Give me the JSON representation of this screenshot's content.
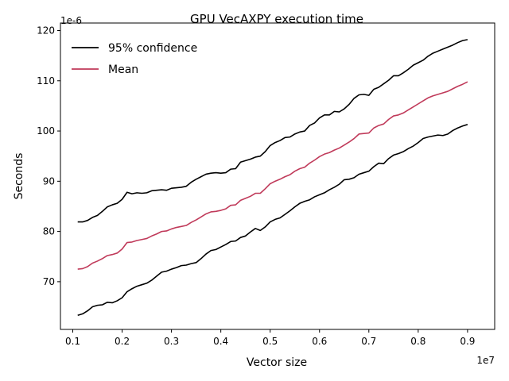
{
  "chart_data": {
    "type": "line",
    "title": "GPU VecAXPY execution time",
    "xlabel": "Vector size",
    "ylabel": "Seconds",
    "x_multiplier_label": "1e7",
    "y_multiplier_label": "1e-6",
    "xlim": [
      0.075,
      0.955
    ],
    "ylim": [
      60.5,
      121.5
    ],
    "x_ticks": [
      0.1,
      0.2,
      0.3,
      0.4,
      0.5,
      0.6,
      0.7,
      0.8,
      0.9
    ],
    "x_tick_labels": [
      "0.1",
      "0.2",
      "0.3",
      "0.4",
      "0.5",
      "0.6",
      "0.7",
      "0.8",
      "0.9"
    ],
    "y_ticks": [
      70,
      80,
      90,
      100,
      110,
      120
    ],
    "y_tick_labels": [
      "70",
      "80",
      "90",
      "100",
      "110",
      "120"
    ],
    "legend_position": "top-left",
    "x": [
      0.11,
      0.12,
      0.13,
      0.14,
      0.15,
      0.16,
      0.17,
      0.18,
      0.19,
      0.2,
      0.21,
      0.22,
      0.23,
      0.24,
      0.25,
      0.26,
      0.27,
      0.28,
      0.29,
      0.3,
      0.31,
      0.32,
      0.33,
      0.34,
      0.35,
      0.36,
      0.37,
      0.38,
      0.39,
      0.4,
      0.41,
      0.42,
      0.43,
      0.44,
      0.45,
      0.46,
      0.47,
      0.48,
      0.49,
      0.5,
      0.51,
      0.52,
      0.53,
      0.54,
      0.55,
      0.56,
      0.57,
      0.58,
      0.59,
      0.6,
      0.61,
      0.62,
      0.63,
      0.64,
      0.65,
      0.66,
      0.67,
      0.68,
      0.69,
      0.7,
      0.71,
      0.72,
      0.73,
      0.74,
      0.75,
      0.76,
      0.77,
      0.78,
      0.79,
      0.8,
      0.81,
      0.82,
      0.83,
      0.84,
      0.85,
      0.86,
      0.87,
      0.88,
      0.89,
      0.9
    ],
    "series": [
      {
        "name": "95% confidence",
        "color": "#000000",
        "values": [
          81.9,
          81.9,
          82.2,
          82.8,
          83.2,
          84.0,
          84.9,
          85.3,
          85.6,
          86.4,
          87.8,
          87.5,
          87.7,
          87.6,
          87.7,
          88.1,
          88.2,
          88.3,
          88.2,
          88.6,
          88.7,
          88.8,
          89.0,
          89.8,
          90.4,
          90.9,
          91.4,
          91.6,
          91.7,
          91.6,
          91.7,
          92.4,
          92.5,
          93.8,
          94.1,
          94.4,
          94.8,
          95.0,
          95.9,
          97.1,
          97.7,
          98.1,
          98.7,
          98.8,
          99.4,
          99.8,
          100.0,
          101.1,
          101.6,
          102.6,
          103.2,
          103.2,
          103.9,
          103.8,
          104.4,
          105.3,
          106.5,
          107.2,
          107.3,
          107.1,
          108.3,
          108.7,
          109.4,
          110.1,
          111.0,
          111.0,
          111.6,
          112.3,
          113.1,
          113.6,
          114.1,
          114.9,
          115.5,
          115.9,
          116.3,
          116.7,
          117.1,
          117.6,
          118.0,
          118.2
        ]
      },
      {
        "name": "Mean",
        "color": "#c03a5a",
        "values": [
          72.5,
          72.6,
          73.0,
          73.7,
          74.1,
          74.6,
          75.2,
          75.4,
          75.7,
          76.5,
          77.8,
          77.9,
          78.2,
          78.4,
          78.6,
          79.1,
          79.5,
          80.0,
          80.1,
          80.5,
          80.8,
          81.0,
          81.2,
          81.8,
          82.3,
          82.9,
          83.5,
          83.9,
          84.0,
          84.2,
          84.5,
          85.2,
          85.3,
          86.2,
          86.6,
          87.0,
          87.6,
          87.6,
          88.5,
          89.5,
          90.0,
          90.4,
          90.9,
          91.3,
          92.0,
          92.5,
          92.8,
          93.6,
          94.2,
          94.9,
          95.4,
          95.7,
          96.2,
          96.6,
          97.2,
          97.8,
          98.5,
          99.4,
          99.5,
          99.6,
          100.6,
          101.1,
          101.4,
          102.3,
          103.0,
          103.2,
          103.6,
          104.2,
          104.8,
          105.4,
          106.0,
          106.6,
          107.0,
          107.3,
          107.6,
          107.9,
          108.4,
          108.9,
          109.3,
          109.8
        ]
      },
      {
        "name": "",
        "color": "#000000",
        "values": [
          63.3,
          63.6,
          64.2,
          65.0,
          65.3,
          65.4,
          65.9,
          65.8,
          66.2,
          66.8,
          68.0,
          68.6,
          69.1,
          69.4,
          69.7,
          70.3,
          71.1,
          71.9,
          72.1,
          72.5,
          72.8,
          73.2,
          73.3,
          73.6,
          73.8,
          74.6,
          75.5,
          76.2,
          76.4,
          76.9,
          77.4,
          78.0,
          78.1,
          78.8,
          79.1,
          79.9,
          80.6,
          80.2,
          80.9,
          81.9,
          82.4,
          82.7,
          83.4,
          84.1,
          84.9,
          85.6,
          86.0,
          86.3,
          86.9,
          87.3,
          87.7,
          88.3,
          88.8,
          89.4,
          90.3,
          90.4,
          90.7,
          91.4,
          91.7,
          92.0,
          92.9,
          93.6,
          93.5,
          94.5,
          95.2,
          95.5,
          95.9,
          96.5,
          97.0,
          97.7,
          98.5,
          98.8,
          99.0,
          99.2,
          99.1,
          99.4,
          100.1,
          100.6,
          101.0,
          101.3
        ]
      }
    ]
  }
}
